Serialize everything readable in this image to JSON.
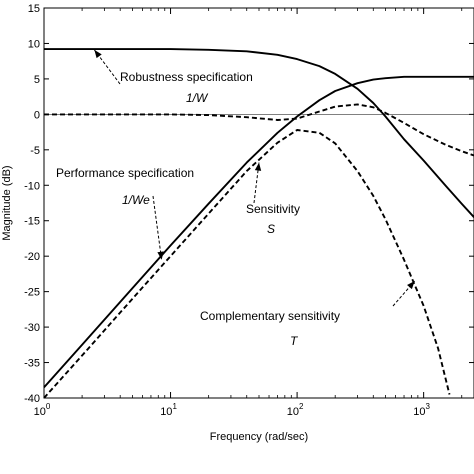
{
  "chart_data": {
    "type": "line",
    "xlabel": "Frequency  (rad/sec)",
    "ylabel": "Magnitude (dB)",
    "xscale": "log",
    "xlim": [
      1,
      2500
    ],
    "ylim": [
      -40,
      15
    ],
    "yticks": [
      15,
      10,
      5,
      0,
      -5,
      -10,
      -15,
      -20,
      -25,
      -30,
      -35,
      -40
    ],
    "xticks": [
      {
        "value": 1,
        "base": "10",
        "exp": "0"
      },
      {
        "value": 10,
        "base": "10",
        "exp": "1"
      },
      {
        "value": 100,
        "base": "10",
        "exp": "2"
      },
      {
        "value": 1000,
        "base": "10",
        "exp": "3"
      }
    ],
    "grid": false,
    "series": [
      {
        "style": "solid",
        "x": [
          1,
          2,
          5,
          10,
          20,
          40,
          70,
          100,
          150,
          200,
          300,
          400,
          500,
          700,
          1000,
          1500,
          2000,
          2500
        ],
        "y": [
          9.2,
          9.2,
          9.2,
          9.2,
          9.1,
          8.9,
          8.4,
          7.8,
          6.8,
          5.7,
          3.6,
          1.6,
          -0.3,
          -3.5,
          -6.5,
          -10.1,
          -12.6,
          -14.5
        ]
      },
      {
        "style": "dashed",
        "x": [
          1,
          5,
          10,
          20,
          40,
          70,
          100,
          150,
          200,
          300,
          400,
          500,
          700,
          1000,
          1500,
          2000,
          2500
        ],
        "y": [
          0.0,
          0.0,
          0.0,
          -0.1,
          -0.4,
          -0.8,
          -0.6,
          0.4,
          1.1,
          1.4,
          1.0,
          0.2,
          -1.2,
          -2.8,
          -4.3,
          -5.2,
          -5.8
        ]
      },
      {
        "style": "solid",
        "x": [
          1,
          2,
          5,
          10,
          20,
          40,
          70,
          100,
          150,
          200,
          300,
          400,
          500,
          700,
          1000,
          1500,
          2000,
          2500
        ],
        "y": [
          -38.5,
          -32.5,
          -24.5,
          -18.5,
          -12.6,
          -6.8,
          -2.6,
          -0.3,
          2.0,
          3.3,
          4.4,
          4.9,
          5.1,
          5.3,
          5.3,
          5.3,
          5.3,
          5.3
        ]
      },
      {
        "style": "dashed",
        "x": [
          1,
          2,
          5,
          10,
          20,
          40,
          70,
          100,
          150,
          200,
          300,
          400,
          500,
          700,
          1000,
          1300,
          1600
        ],
        "y": [
          -40,
          -34,
          -26,
          -20,
          -14,
          -8,
          -4,
          -2.2,
          -2.6,
          -4.1,
          -8.0,
          -11.5,
          -14.8,
          -20.5,
          -27.0,
          -33.0,
          -39.5
        ]
      }
    ],
    "annotations": [
      {
        "lines": [
          "Robustness specification",
          "1/W"
        ],
        "arrow_to": {
          "x": 2.5,
          "y": 9.1
        }
      },
      {
        "lines": [
          "Performance specification",
          "1/We"
        ],
        "arrow_to": {
          "x": 8.5,
          "y": -20.5
        }
      },
      {
        "lines": [
          "Sensitivity",
          "S"
        ],
        "arrow_to": {
          "x": 50,
          "y": -6.8
        }
      },
      {
        "lines": [
          "Complementary sensitivity",
          "T"
        ],
        "arrow_to": {
          "x": 850,
          "y": -23.5
        }
      }
    ]
  }
}
